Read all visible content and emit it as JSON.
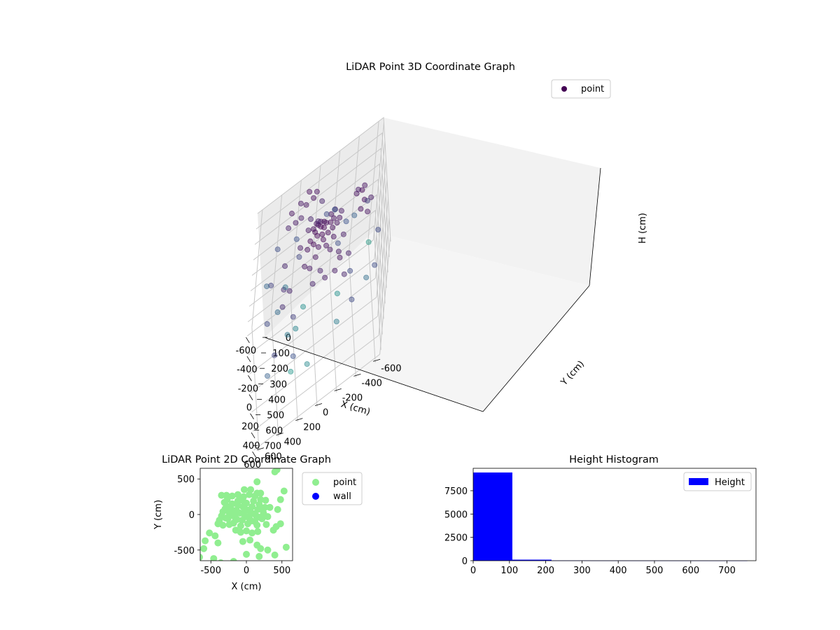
{
  "chart_data": [
    {
      "type": "scatter",
      "projection": "3d",
      "title": "LiDAR Point 3D Coordinate Graph",
      "xlabel": "X (cm)",
      "ylabel": "Y (cm)",
      "zlabel": "H (cm)",
      "xticks": [
        "-600",
        "-400",
        "-200",
        "0",
        "200",
        "400",
        "600"
      ],
      "yticks": [
        "-600",
        "-400",
        "-200",
        "0",
        "200",
        "400",
        "600"
      ],
      "zticks": [
        "0",
        "100",
        "200",
        "300",
        "400",
        "500",
        "600",
        "700"
      ],
      "xlim": [
        -650,
        650
      ],
      "ylim": [
        -650,
        650
      ],
      "zlim": [
        0,
        760
      ],
      "z_inverted": true,
      "grid": true,
      "legend": {
        "placement": "top-right",
        "entries": [
          "point"
        ]
      },
      "colormap": "viridis",
      "colors": {
        "cluster": "#440154",
        "far": "#21918c",
        "pane_side": "#ebebeb",
        "pane_back": "#f2f2f2",
        "pane_floor": "#f5f5f5"
      },
      "series": [
        {
          "name": "point",
          "points": [
            [
              0,
              0,
              0
            ],
            [
              40,
              20,
              10
            ],
            [
              -40,
              30,
              5
            ],
            [
              60,
              -40,
              15
            ],
            [
              -60,
              -30,
              20
            ],
            [
              20,
              70,
              8
            ],
            [
              -20,
              -70,
              12
            ],
            [
              90,
              10,
              18
            ],
            [
              -90,
              -10,
              22
            ],
            [
              30,
              -90,
              25
            ],
            [
              -30,
              90,
              6
            ],
            [
              110,
              60,
              30
            ],
            [
              -110,
              50,
              28
            ],
            [
              70,
              110,
              14
            ],
            [
              -70,
              -110,
              35
            ],
            [
              140,
              -20,
              40
            ],
            [
              -140,
              20,
              38
            ],
            [
              10,
              140,
              16
            ],
            [
              -10,
              -140,
              42
            ],
            [
              100,
              -100,
              45
            ],
            [
              -100,
              100,
              24
            ],
            [
              160,
              90,
              50
            ],
            [
              -160,
              -90,
              55
            ],
            [
              50,
              170,
              32
            ],
            [
              -50,
              -170,
              48
            ],
            [
              180,
              -60,
              60
            ],
            [
              -180,
              60,
              58
            ],
            [
              200,
              150,
              70
            ],
            [
              -200,
              140,
              75
            ],
            [
              150,
              200,
              65
            ],
            [
              -150,
              -200,
              80
            ],
            [
              230,
              -150,
              85
            ],
            [
              -230,
              -140,
              90
            ],
            [
              80,
              -210,
              95
            ],
            [
              -80,
              230,
              72
            ],
            [
              260,
              40,
              100
            ],
            [
              -260,
              30,
              105
            ],
            [
              -420,
              80,
              30
            ],
            [
              -450,
              150,
              60
            ],
            [
              -480,
              40,
              45
            ],
            [
              -400,
              200,
              90
            ],
            [
              -500,
              120,
              20
            ],
            [
              -380,
              260,
              80
            ],
            [
              -440,
              -20,
              110
            ],
            [
              -520,
              200,
              70
            ],
            [
              -460,
              300,
              50
            ],
            [
              -360,
              100,
              120
            ],
            [
              -410,
              330,
              100
            ],
            [
              -100,
              -400,
              10
            ],
            [
              -150,
              -350,
              40
            ],
            [
              0,
              -420,
              20
            ],
            [
              -200,
              -440,
              60
            ],
            [
              50,
              -380,
              30
            ],
            [
              -60,
              -500,
              80
            ],
            [
              100,
              -450,
              50
            ],
            [
              -250,
              -380,
              90
            ],
            [
              350,
              -150,
              50
            ],
            [
              400,
              -100,
              80
            ],
            [
              300,
              -250,
              100
            ],
            [
              450,
              -200,
              120
            ],
            [
              380,
              0,
              90
            ],
            [
              320,
              120,
              110
            ],
            [
              200,
              350,
              120
            ],
            [
              100,
              400,
              150
            ],
            [
              -100,
              380,
              130
            ],
            [
              250,
              420,
              160
            ],
            [
              -600,
              200,
              350
            ],
            [
              -600,
              400,
              320
            ],
            [
              -550,
              -100,
              300
            ],
            [
              -650,
              -200,
              380
            ],
            [
              -500,
              -400,
              420
            ],
            [
              500,
              500,
              280
            ],
            [
              550,
              300,
              350
            ],
            [
              500,
              -300,
              300
            ],
            [
              450,
              550,
              420
            ],
            [
              -300,
              -500,
              250
            ],
            [
              -200,
              500,
              260
            ],
            [
              0,
              -600,
              300
            ],
            [
              300,
              -550,
              320
            ],
            [
              100,
              550,
              300
            ],
            [
              -300,
              200,
              280
            ],
            [
              200,
              -300,
              300
            ],
            [
              -200,
              -200,
              320
            ],
            [
              300,
              300,
              250
            ],
            [
              -400,
              -300,
              350
            ],
            [
              -500,
              500,
              450
            ],
            [
              -200,
              400,
              480
            ],
            [
              100,
              -500,
              500
            ],
            [
              -450,
              300,
              520
            ],
            [
              0,
              300,
              550
            ],
            [
              200,
              -200,
              580
            ],
            [
              -100,
              200,
              620
            ],
            [
              300,
              100,
              650
            ],
            [
              -350,
              100,
              680
            ],
            [
              -250,
              -250,
              700
            ],
            [
              150,
              250,
              720
            ],
            [
              -600,
              -600,
              750
            ]
          ]
        }
      ]
    },
    {
      "type": "scatter",
      "title": "LiDAR Point 2D Coordinate Graph",
      "xlabel": "X (cm)",
      "ylabel": "Y (cm)",
      "xticks": [
        "-500",
        "0",
        "500"
      ],
      "yticks": [
        "-500",
        "0",
        "500"
      ],
      "xlim": [
        -650,
        650
      ],
      "ylim": [
        -650,
        650
      ],
      "grid": false,
      "legend": {
        "placement": "outside-right",
        "entries": [
          "point",
          "wall"
        ]
      },
      "colors": {
        "point": "#90ee90",
        "wall": "#0000ff"
      },
      "series": [
        {
          "name": "point",
          "points": [
            [
              -400,
              -130
            ],
            [
              -380,
              -80
            ],
            [
              -350,
              -20
            ],
            [
              -330,
              40
            ],
            [
              -300,
              80
            ],
            [
              -280,
              120
            ],
            [
              -260,
              -60
            ],
            [
              -240,
              20
            ],
            [
              -220,
              90
            ],
            [
              -200,
              150
            ],
            [
              -180,
              -120
            ],
            [
              -160,
              -40
            ],
            [
              -140,
              60
            ],
            [
              -120,
              130
            ],
            [
              -100,
              200
            ],
            [
              -80,
              -160
            ],
            [
              -60,
              -80
            ],
            [
              -40,
              10
            ],
            [
              -20,
              80
            ],
            [
              0,
              160
            ],
            [
              20,
              -130
            ],
            [
              40,
              -50
            ],
            [
              60,
              30
            ],
            [
              80,
              110
            ],
            [
              100,
              190
            ],
            [
              120,
              -100
            ],
            [
              140,
              -20
            ],
            [
              160,
              70
            ],
            [
              180,
              140
            ],
            [
              200,
              210
            ],
            [
              220,
              -60
            ],
            [
              240,
              20
            ],
            [
              260,
              100
            ],
            [
              280,
              -140
            ],
            [
              300,
              -30
            ],
            [
              -330,
              -150
            ],
            [
              -290,
              -50
            ],
            [
              -250,
              50
            ],
            [
              -210,
              -10
            ],
            [
              -170,
              30
            ],
            [
              -130,
              -70
            ],
            [
              -90,
              20
            ],
            [
              -50,
              110
            ],
            [
              -10,
              -30
            ],
            [
              30,
              60
            ],
            [
              70,
              -90
            ],
            [
              110,
              10
            ],
            [
              150,
              -150
            ],
            [
              190,
              -40
            ],
            [
              230,
              60
            ],
            [
              -310,
              170
            ],
            [
              -270,
              210
            ],
            [
              -200,
              260
            ],
            [
              -120,
              280
            ],
            [
              -40,
              250
            ],
            [
              40,
              280
            ],
            [
              120,
              260
            ],
            [
              200,
              300
            ],
            [
              -150,
              -220
            ],
            [
              -80,
              -250
            ],
            [
              0,
              -230
            ],
            [
              80,
              -260
            ],
            [
              160,
              -240
            ],
            [
              -350,
              270
            ],
            [
              -30,
              350
            ],
            [
              150,
              300
            ],
            [
              430,
              630
            ],
            [
              400,
              600
            ],
            [
              150,
              460
            ],
            [
              480,
              210
            ],
            [
              440,
              70
            ],
            [
              480,
              -130
            ],
            [
              420,
              -170
            ],
            [
              380,
              -220
            ],
            [
              560,
              -460
            ],
            [
              400,
              -570
            ],
            [
              300,
              -500
            ],
            [
              200,
              -480
            ],
            [
              150,
              -430
            ],
            [
              50,
              -360
            ],
            [
              -50,
              -380
            ],
            [
              0,
              -560
            ],
            [
              180,
              -590
            ],
            [
              -180,
              -660
            ],
            [
              -360,
              -680
            ],
            [
              -460,
              -620
            ],
            [
              -580,
              -370
            ],
            [
              -600,
              -480
            ],
            [
              -660,
              -600
            ],
            [
              -520,
              -260
            ],
            [
              -400,
              -400
            ],
            [
              -280,
              270
            ],
            [
              -120,
              190
            ],
            [
              -50,
              200
            ],
            [
              60,
              350
            ],
            [
              270,
              200
            ],
            [
              530,
              330
            ],
            [
              330,
              100
            ],
            [
              -440,
              -300
            ],
            [
              -240,
              -140
            ]
          ]
        },
        {
          "name": "wall",
          "points": []
        }
      ]
    },
    {
      "type": "bar",
      "title": "Height Histogram",
      "xticks": [
        "0",
        "100",
        "200",
        "300",
        "400",
        "500",
        "600",
        "700"
      ],
      "yticks": [
        "0",
        "2500",
        "5000",
        "7500"
      ],
      "xlim": [
        0,
        780
      ],
      "ylim": [
        0,
        9900
      ],
      "grid": false,
      "legend": {
        "placement": "top-right",
        "entries": [
          "Height"
        ]
      },
      "colors": {
        "bar": "#0000ff"
      },
      "series": [
        {
          "name": "Height",
          "bins": [
            [
              0,
              108,
              9450
            ],
            [
              108,
              216,
              110
            ],
            [
              216,
              324,
              22
            ],
            [
              324,
              432,
              15
            ],
            [
              432,
              540,
              10
            ],
            [
              540,
              648,
              7
            ],
            [
              648,
              756,
              5
            ]
          ]
        }
      ]
    }
  ]
}
